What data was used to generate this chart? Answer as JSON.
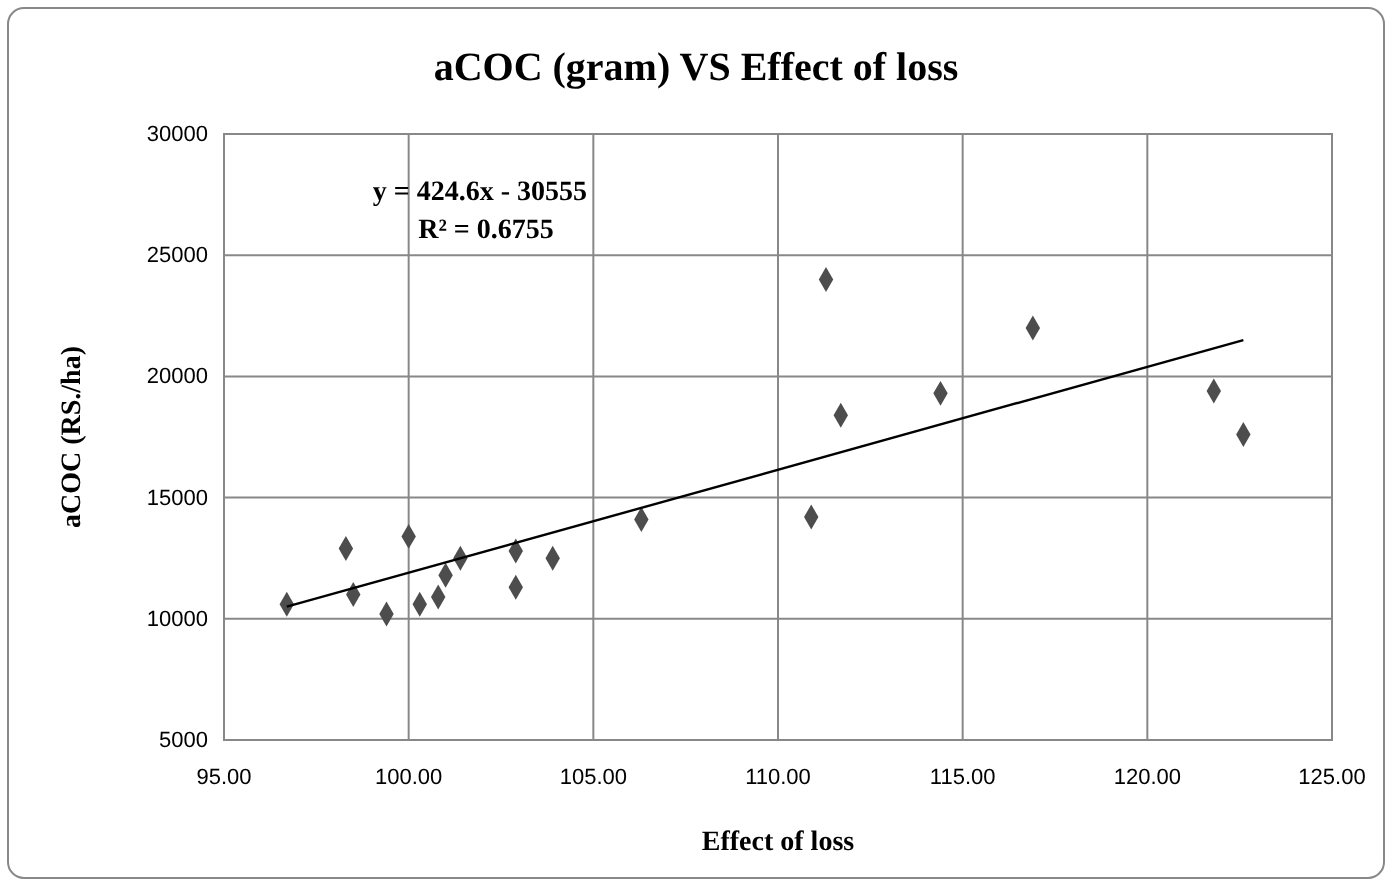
{
  "chart_data": {
    "type": "scatter",
    "title": "aCOC (gram) VS Effect of loss",
    "xlabel": "Effect of loss",
    "ylabel": "aCOC (RS./ha)",
    "xlim": [
      95,
      125
    ],
    "xticks": [
      {
        "value": 95,
        "label": "95.00"
      },
      {
        "value": 100,
        "label": "100.00"
      },
      {
        "value": 105,
        "label": "105.00"
      },
      {
        "value": 110,
        "label": "110.00"
      },
      {
        "value": 115,
        "label": "115.00"
      },
      {
        "value": 120,
        "label": "120.00"
      },
      {
        "value": 125,
        "label": "125.00"
      }
    ],
    "ylim": [
      5000,
      30000
    ],
    "yticks": [
      5000,
      10000,
      15000,
      20000,
      25000,
      30000
    ],
    "grid": true,
    "annotations": [
      "y = 424.6x - 30555",
      "R² = 0.6755"
    ],
    "series": [
      {
        "marker": "diamond",
        "color": "#4d4d4d",
        "x": [
          96.7,
          98.3,
          98.5,
          99.4,
          100.0,
          100.3,
          100.8,
          101.0,
          101.4,
          102.9,
          102.9,
          103.9,
          106.3,
          110.9,
          111.3,
          111.7,
          114.4,
          116.9,
          121.8,
          122.6
        ],
        "values": [
          10600,
          12900,
          11000,
          10200,
          13400,
          10600,
          10900,
          11800,
          12500,
          11300,
          12800,
          12500,
          14100,
          14200,
          24000,
          18400,
          19300,
          22000,
          19400,
          17600
        ]
      },
      {
        "type": "line",
        "color": "#000000",
        "x": [
          96.7,
          122.6
        ],
        "values": [
          10500,
          21500
        ]
      }
    ]
  }
}
